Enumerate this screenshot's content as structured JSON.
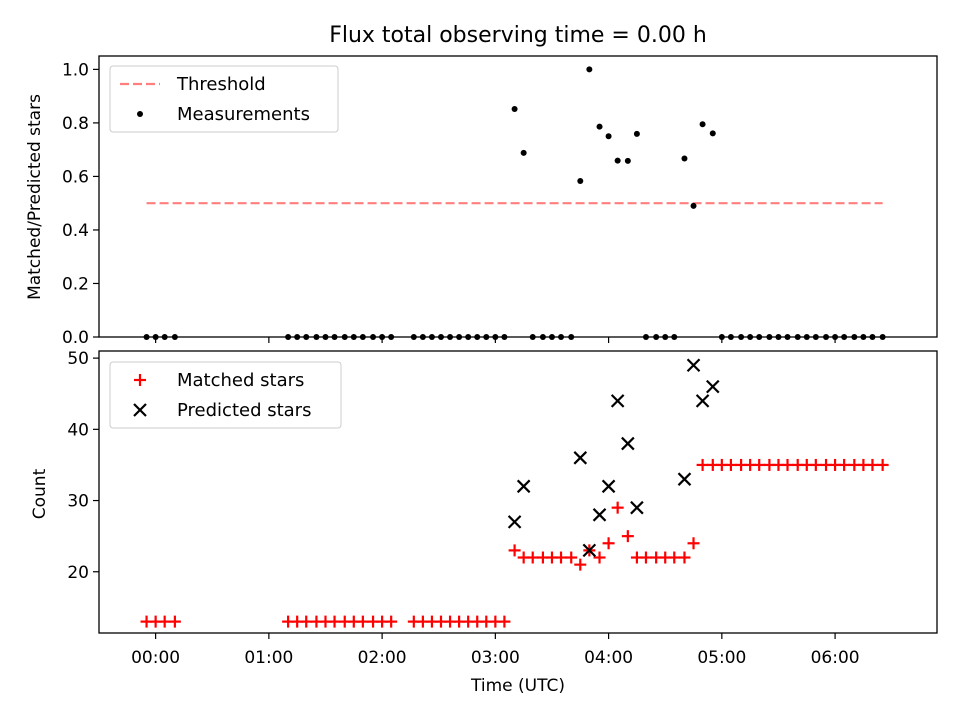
{
  "title": "Flux total observing time = 0.00 h",
  "colors": {
    "threshold": "#ff7f7f",
    "measurement": "#000000",
    "matched": "#ff0000",
    "predicted": "#000000"
  },
  "chart_data": [
    {
      "type": "scatter",
      "panel": "top",
      "ylabel": "Matched/Predicted stars",
      "ylim": [
        0,
        1.05
      ],
      "yticks": [
        "0.0",
        "0.2",
        "0.4",
        "0.6",
        "0.8",
        "1.0"
      ],
      "ytick_values": [
        0,
        0.2,
        0.4,
        0.6,
        0.8,
        1.0
      ],
      "xlim_hours": [
        -0.5,
        6.9
      ],
      "legend": {
        "placement": "upper-left",
        "entries": [
          "Threshold",
          "Measurements"
        ]
      },
      "threshold": {
        "name": "Threshold",
        "y": 0.5,
        "x_range_hours": [
          -0.08,
          6.42
        ]
      },
      "series": [
        {
          "name": "Measurements",
          "x_hours": [
            -0.08,
            0.0,
            0.08,
            0.17,
            1.17,
            1.25,
            1.33,
            1.42,
            1.5,
            1.58,
            1.67,
            1.75,
            1.83,
            1.92,
            2.0,
            2.08,
            2.28,
            2.36,
            2.44,
            2.52,
            2.6,
            2.68,
            2.76,
            2.84,
            2.92,
            3.0,
            3.08,
            3.17,
            3.25,
            3.33,
            3.42,
            3.5,
            3.58,
            3.67,
            3.75,
            3.83,
            3.92,
            4.0,
            4.08,
            4.17,
            4.25,
            4.33,
            4.42,
            4.5,
            4.58,
            4.67,
            4.75,
            4.83,
            4.92,
            5.0,
            5.08,
            5.17,
            5.25,
            5.33,
            5.42,
            5.5,
            5.58,
            5.67,
            5.75,
            5.83,
            5.92,
            6.0,
            6.08,
            6.17,
            6.25,
            6.33,
            6.42
          ],
          "values": [
            0,
            0,
            0,
            0,
            0,
            0,
            0,
            0,
            0,
            0,
            0,
            0,
            0,
            0,
            0,
            0,
            0,
            0,
            0,
            0,
            0,
            0,
            0,
            0,
            0,
            0,
            0,
            0.852,
            0.688,
            0,
            0,
            0,
            0,
            0,
            0.583,
            1.0,
            0.786,
            0.75,
            0.659,
            0.658,
            0.759,
            0,
            0,
            0,
            0,
            0.667,
            0.49,
            0.795,
            0.761,
            0,
            0,
            0,
            0,
            0,
            0,
            0,
            0,
            0,
            0,
            0,
            0,
            0,
            0,
            0,
            0,
            0,
            0
          ]
        }
      ]
    },
    {
      "type": "scatter",
      "panel": "bottom",
      "xlabel": "Time (UTC)",
      "ylabel": "Count",
      "ylim": [
        11.4,
        51
      ],
      "yticks": [
        "20",
        "30",
        "40",
        "50"
      ],
      "ytick_values": [
        20,
        30,
        40,
        50
      ],
      "xlim_hours": [
        -0.5,
        6.9
      ],
      "xticks": [
        "00:00",
        "01:00",
        "02:00",
        "03:00",
        "04:00",
        "05:00",
        "06:00"
      ],
      "xtick_hours": [
        0,
        1,
        2,
        3,
        4,
        5,
        6
      ],
      "legend": {
        "placement": "upper-left",
        "entries": [
          "Matched stars",
          "Predicted stars"
        ]
      },
      "series": [
        {
          "name": "Matched stars",
          "marker": "plus",
          "x_hours": [
            -0.08,
            0.0,
            0.08,
            0.17,
            1.17,
            1.25,
            1.33,
            1.42,
            1.5,
            1.58,
            1.67,
            1.75,
            1.83,
            1.92,
            2.0,
            2.08,
            2.28,
            2.36,
            2.44,
            2.52,
            2.6,
            2.68,
            2.76,
            2.84,
            2.92,
            3.0,
            3.08,
            3.17,
            3.25,
            3.33,
            3.42,
            3.5,
            3.58,
            3.67,
            3.75,
            3.83,
            3.92,
            4.0,
            4.08,
            4.17,
            4.25,
            4.33,
            4.42,
            4.5,
            4.58,
            4.67,
            4.75,
            4.83,
            4.92,
            5.0,
            5.08,
            5.17,
            5.25,
            5.33,
            5.42,
            5.5,
            5.58,
            5.67,
            5.75,
            5.83,
            5.92,
            6.0,
            6.08,
            6.17,
            6.25,
            6.33,
            6.42
          ],
          "values": [
            13,
            13,
            13,
            13,
            13,
            13,
            13,
            13,
            13,
            13,
            13,
            13,
            13,
            13,
            13,
            13,
            13,
            13,
            13,
            13,
            13,
            13,
            13,
            13,
            13,
            13,
            13,
            23,
            22,
            22,
            22,
            22,
            22,
            22,
            21,
            23,
            22,
            24,
            29,
            25,
            22,
            22,
            22,
            22,
            22,
            22,
            24,
            35,
            35,
            35,
            35,
            35,
            35,
            35,
            35,
            35,
            35,
            35,
            35,
            35,
            35,
            35,
            35,
            35,
            35,
            35,
            35
          ]
        },
        {
          "name": "Predicted stars",
          "marker": "x",
          "x_hours": [
            3.17,
            3.25,
            3.75,
            3.83,
            3.92,
            4.0,
            4.08,
            4.17,
            4.25,
            4.67,
            4.75,
            4.83,
            4.92
          ],
          "values": [
            27,
            32,
            36,
            23,
            28,
            32,
            44,
            38,
            29,
            33,
            49,
            44,
            46
          ]
        }
      ]
    }
  ]
}
